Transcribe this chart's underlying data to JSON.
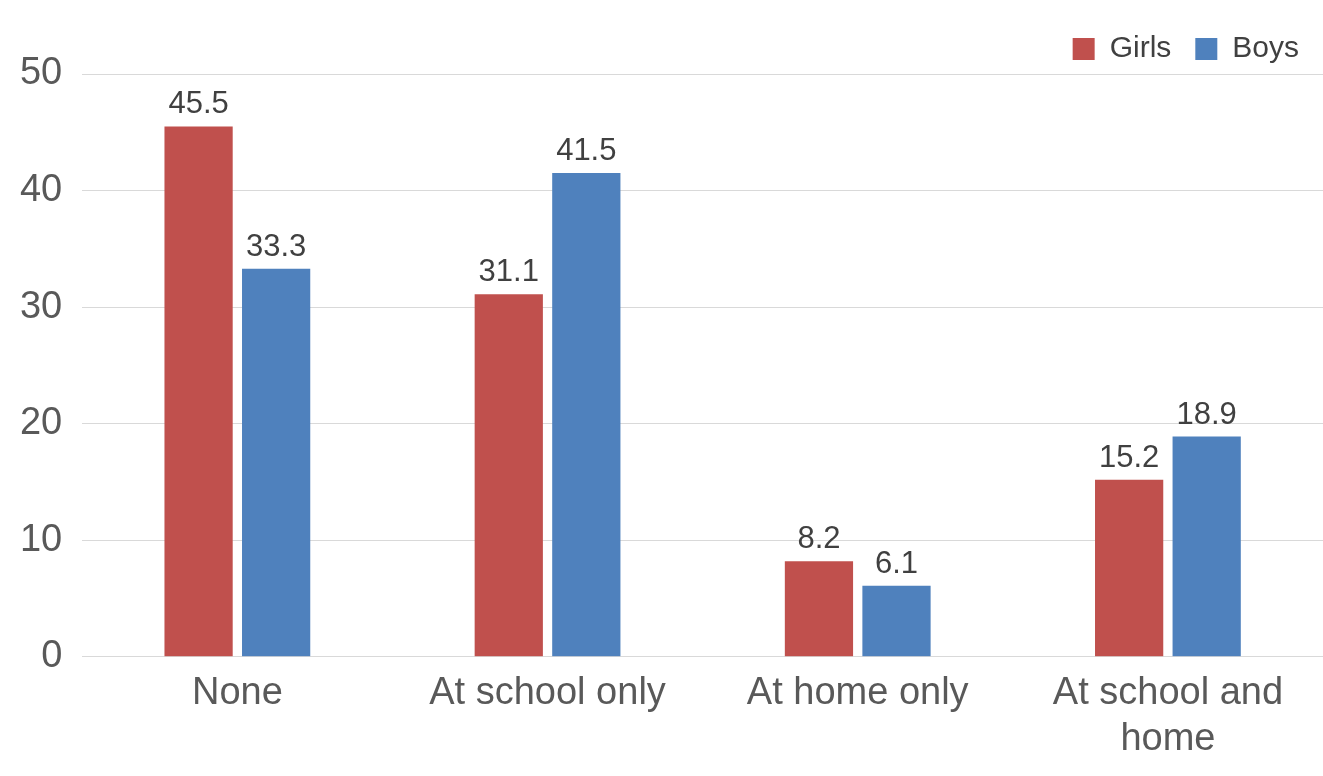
{
  "chart_data": {
    "type": "bar",
    "categories": [
      "None",
      "At school only",
      "At home only",
      "At school and home"
    ],
    "series": [
      {
        "name": "Girls",
        "color": "#c0504d",
        "values": [
          45.5,
          31.1,
          8.2,
          15.2
        ]
      },
      {
        "name": "Boys",
        "color": "#4f81bd",
        "values": [
          33.3,
          41.5,
          6.1,
          18.9
        ]
      }
    ],
    "ylim": [
      0,
      50
    ],
    "yticks": [
      0,
      10,
      20,
      30,
      40,
      50
    ],
    "grid": "y",
    "legend": "top right",
    "data_labels": true
  }
}
